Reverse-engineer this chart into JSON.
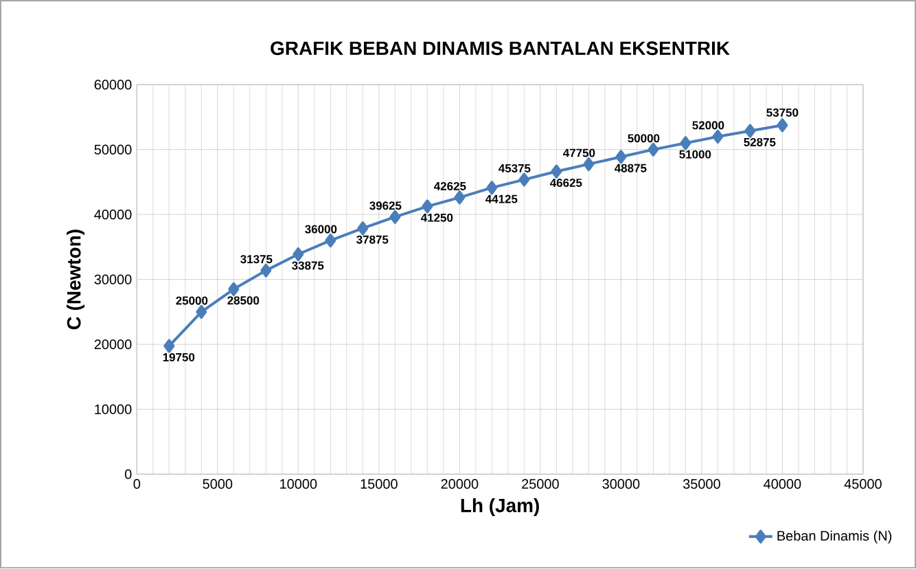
{
  "chart_data": {
    "type": "line",
    "title": "GRAFIK BEBAN DINAMIS BANTALAN EKSENTRIK",
    "xlabel": "Lh (Jam)",
    "ylabel": "C (Newton)",
    "x": [
      2000,
      4000,
      6000,
      8000,
      10000,
      12000,
      14000,
      16000,
      18000,
      20000,
      22000,
      24000,
      26000,
      28000,
      30000,
      32000,
      34000,
      36000,
      38000,
      40000
    ],
    "series": [
      {
        "name": "Beban Dinamis (N)",
        "color": "#4a7ebb",
        "values": [
          19750,
          25000,
          28500,
          31375,
          33875,
          36000,
          37875,
          39625,
          41250,
          42625,
          44125,
          45375,
          46625,
          47750,
          48875,
          50000,
          51000,
          52000,
          52875,
          53750
        ]
      }
    ],
    "xlim": [
      0,
      45000
    ],
    "xticks": [
      0,
      5000,
      10000,
      15000,
      20000,
      25000,
      30000,
      35000,
      40000,
      45000
    ],
    "ylim": [
      0,
      60000
    ],
    "yticks": [
      0,
      10000,
      20000,
      30000,
      40000,
      50000,
      60000
    ],
    "grid": true,
    "legend": "bottom right",
    "marker": "diamond",
    "line_style": "solid",
    "data_labels": true
  }
}
